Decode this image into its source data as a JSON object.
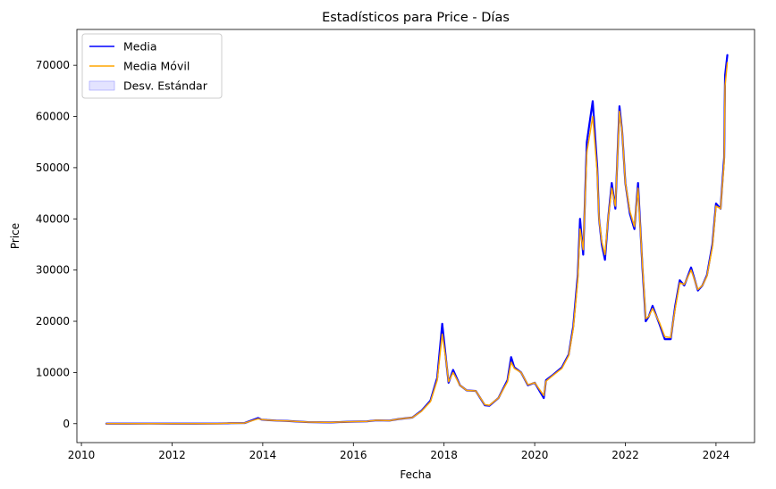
{
  "chart_data": {
    "type": "line",
    "title": "Estadísticos para Price - Días",
    "xlabel": "Fecha",
    "ylabel": "Price",
    "xlim": [
      2009.9,
      2024.85
    ],
    "ylim": [
      -3700,
      77000
    ],
    "xticks": [
      2010,
      2012,
      2014,
      2016,
      2018,
      2020,
      2022,
      2024
    ],
    "yticks": [
      0,
      10000,
      20000,
      30000,
      40000,
      50000,
      60000,
      70000
    ],
    "grid": false,
    "legend_position": "top-left",
    "colors": {
      "media": "#0000ff",
      "media_movil": "#ffa500",
      "std_fill": "#ccccff"
    },
    "legend": [
      "Media",
      "Media Móvil",
      "Desv. Estándar"
    ],
    "series": [
      {
        "name": "Media",
        "x": [
          2010.55,
          2011.0,
          2011.5,
          2012.0,
          2012.5,
          2013.0,
          2013.3,
          2013.6,
          2013.9,
          2013.97,
          2014.1,
          2014.3,
          2014.5,
          2014.8,
          2015.0,
          2015.5,
          2016.0,
          2016.3,
          2016.5,
          2016.8,
          2017.0,
          2017.3,
          2017.5,
          2017.7,
          2017.85,
          2017.96,
          2018.05,
          2018.1,
          2018.2,
          2018.35,
          2018.5,
          2018.7,
          2018.9,
          2019.0,
          2019.2,
          2019.4,
          2019.48,
          2019.55,
          2019.7,
          2019.85,
          2020.0,
          2020.2,
          2020.25,
          2020.4,
          2020.6,
          2020.75,
          2020.85,
          2020.95,
          2021.0,
          2021.07,
          2021.15,
          2021.28,
          2021.38,
          2021.42,
          2021.48,
          2021.55,
          2021.62,
          2021.7,
          2021.78,
          2021.87,
          2021.93,
          2022.0,
          2022.1,
          2022.2,
          2022.28,
          2022.38,
          2022.45,
          2022.52,
          2022.6,
          2022.75,
          2022.87,
          2023.0,
          2023.1,
          2023.2,
          2023.3,
          2023.45,
          2023.6,
          2023.7,
          2023.8,
          2023.92,
          2024.0,
          2024.1,
          2024.18,
          2024.2,
          2024.25
        ],
        "y": [
          0,
          2,
          10,
          5,
          8,
          15,
          100,
          120,
          1100,
          800,
          700,
          600,
          550,
          400,
          300,
          250,
          400,
          450,
          650,
          600,
          900,
          1200,
          2500,
          4500,
          9000,
          19500,
          12000,
          8000,
          10500,
          7500,
          6500,
          6400,
          3600,
          3500,
          5000,
          8500,
          13000,
          11000,
          10000,
          7500,
          8000,
          5000,
          8500,
          9500,
          11000,
          13500,
          19000,
          29000,
          40000,
          33000,
          55000,
          63000,
          50000,
          40000,
          35000,
          32000,
          40000,
          47000,
          42000,
          62000,
          57000,
          47000,
          41000,
          38000,
          47000,
          30000,
          20000,
          21000,
          23000,
          19500,
          16500,
          16500,
          23000,
          28000,
          27000,
          30500,
          26000,
          27000,
          29000,
          35000,
          43000,
          42000,
          52000,
          68000,
          72000
        ]
      },
      {
        "name": "Media Móvil",
        "x": [
          2010.55,
          2011.0,
          2011.5,
          2012.0,
          2012.5,
          2013.0,
          2013.3,
          2013.6,
          2013.9,
          2013.97,
          2014.1,
          2014.3,
          2014.5,
          2014.8,
          2015.0,
          2015.5,
          2016.0,
          2016.3,
          2016.5,
          2016.8,
          2017.0,
          2017.3,
          2017.5,
          2017.7,
          2017.85,
          2017.96,
          2018.05,
          2018.1,
          2018.2,
          2018.35,
          2018.5,
          2018.7,
          2018.9,
          2019.0,
          2019.2,
          2019.4,
          2019.48,
          2019.55,
          2019.7,
          2019.85,
          2020.0,
          2020.2,
          2020.25,
          2020.4,
          2020.6,
          2020.75,
          2020.85,
          2020.95,
          2021.0,
          2021.07,
          2021.15,
          2021.28,
          2021.38,
          2021.42,
          2021.48,
          2021.55,
          2021.62,
          2021.7,
          2021.78,
          2021.87,
          2021.93,
          2022.0,
          2022.1,
          2022.2,
          2022.28,
          2022.38,
          2022.45,
          2022.52,
          2022.6,
          2022.75,
          2022.87,
          2023.0,
          2023.1,
          2023.2,
          2023.3,
          2023.45,
          2023.6,
          2023.7,
          2023.8,
          2023.92,
          2024.0,
          2024.1,
          2024.18,
          2024.2,
          2024.25
        ],
        "y": [
          0,
          2,
          10,
          5,
          8,
          15,
          100,
          120,
          950,
          800,
          700,
          600,
          550,
          400,
          300,
          250,
          400,
          450,
          650,
          600,
          900,
          1200,
          2400,
          4300,
          8500,
          17500,
          12000,
          8200,
          10000,
          7500,
          6500,
          6400,
          3700,
          3600,
          5000,
          8200,
          12000,
          10800,
          10000,
          7600,
          8000,
          5500,
          8300,
          9400,
          10800,
          13300,
          18500,
          28000,
          38000,
          34000,
          53000,
          60000,
          49000,
          40000,
          35500,
          33000,
          40000,
          46000,
          42500,
          61000,
          57000,
          47000,
          41500,
          38500,
          46000,
          30500,
          20500,
          21000,
          22500,
          19800,
          17000,
          16800,
          22500,
          27500,
          27200,
          30000,
          26200,
          27000,
          28800,
          34500,
          42500,
          42000,
          51000,
          66000,
          70500
        ]
      }
    ]
  }
}
